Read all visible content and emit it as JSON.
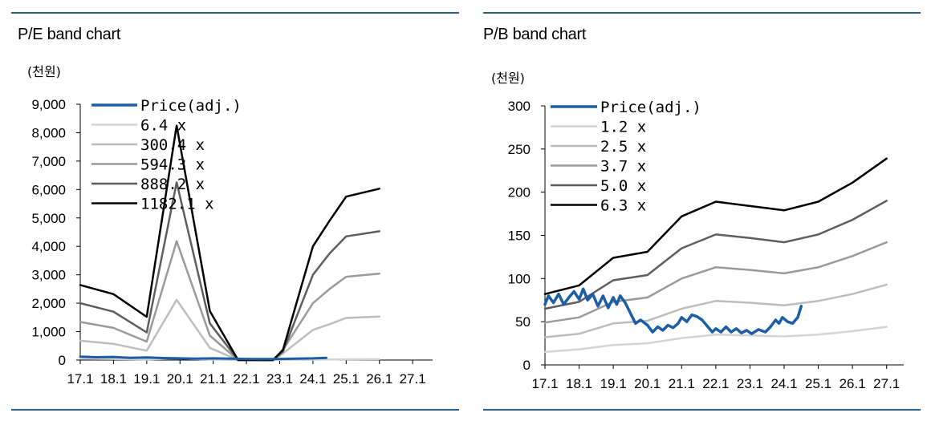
{
  "colors": {
    "rule": "#2a5d8c",
    "price": "#1b5ea6",
    "band1": "#d4d4d4",
    "band2": "#bdbdbd",
    "band3": "#9a9a9a",
    "band4": "#5e5e5e",
    "band5": "#000000"
  },
  "chart_data": [
    {
      "type": "line",
      "title": "P/E band chart",
      "unit_label": "(천원)",
      "x_tick_labels": [
        "17.1",
        "18.1",
        "19.1",
        "20.1",
        "21.1",
        "22.1",
        "23.1",
        "24.1",
        "25.1",
        "26.1",
        "27.1"
      ],
      "x_range": [
        2017.0,
        2027.6
      ],
      "ylim": [
        0,
        9000
      ],
      "y_tick_labels": [
        "0",
        "1,000",
        "2,000",
        "3,000",
        "4,000",
        "5,000",
        "6,000",
        "7,000",
        "8,000",
        "9,000"
      ],
      "legend_position": "top-left",
      "series": [
        {
          "name": "Price(adj.)",
          "color_key": "price",
          "width": 3,
          "points": [
            [
              2017.0,
              120
            ],
            [
              2017.5,
              100
            ],
            [
              2018.0,
              110
            ],
            [
              2018.5,
              80
            ],
            [
              2019.0,
              90
            ],
            [
              2019.5,
              70
            ],
            [
              2020.0,
              60
            ],
            [
              2020.5,
              50
            ],
            [
              2021.0,
              60
            ],
            [
              2021.5,
              50
            ],
            [
              2022.0,
              40
            ],
            [
              2022.5,
              35
            ],
            [
              2023.0,
              40
            ],
            [
              2023.5,
              50
            ],
            [
              2024.0,
              60
            ],
            [
              2024.4,
              80
            ]
          ]
        },
        {
          "name": "6.4 x",
          "color_key": "band1",
          "width": 2.5,
          "points": [
            [
              2017.0,
              50
            ],
            [
              2018.0,
              40
            ],
            [
              2019.0,
              20
            ],
            [
              2019.9,
              60
            ],
            [
              2020.9,
              20
            ],
            [
              2021.75,
              0
            ],
            [
              2022.8,
              0
            ],
            [
              2023.1,
              5
            ],
            [
              2024.0,
              15
            ],
            [
              2025.0,
              25
            ],
            [
              2026.0,
              30
            ]
          ]
        },
        {
          "name": "300.4 x",
          "color_key": "band2",
          "width": 2.5,
          "points": [
            [
              2017.0,
              680
            ],
            [
              2018.0,
              570
            ],
            [
              2019.0,
              330
            ],
            [
              2019.9,
              2120
            ],
            [
              2020.9,
              430
            ],
            [
              2021.75,
              0
            ],
            [
              2022.8,
              0
            ],
            [
              2023.1,
              230
            ],
            [
              2024.0,
              1060
            ],
            [
              2024.5,
              1260
            ],
            [
              2025.0,
              1480
            ],
            [
              2026.0,
              1530
            ]
          ]
        },
        {
          "name": "594.3 x",
          "color_key": "band3",
          "width": 2.5,
          "points": [
            [
              2017.0,
              1340
            ],
            [
              2018.0,
              1130
            ],
            [
              2019.0,
              650
            ],
            [
              2019.9,
              4180
            ],
            [
              2020.9,
              860
            ],
            [
              2021.75,
              0
            ],
            [
              2022.8,
              0
            ],
            [
              2023.1,
              360
            ],
            [
              2024.0,
              2000
            ],
            [
              2024.5,
              2500
            ],
            [
              2025.0,
              2930
            ],
            [
              2026.0,
              3040
            ]
          ]
        },
        {
          "name": "888.2 x",
          "color_key": "band4",
          "width": 2.5,
          "points": [
            [
              2017.0,
              2000
            ],
            [
              2018.0,
              1700
            ],
            [
              2019.0,
              970
            ],
            [
              2019.9,
              6250
            ],
            [
              2020.9,
              1290
            ],
            [
              2021.75,
              0
            ],
            [
              2022.8,
              0
            ],
            [
              2023.1,
              300
            ],
            [
              2024.0,
              3000
            ],
            [
              2024.5,
              3750
            ],
            [
              2025.0,
              4350
            ],
            [
              2026.0,
              4530
            ]
          ]
        },
        {
          "name": "1182.1 x",
          "color_key": "band5",
          "width": 2.5,
          "points": [
            [
              2017.0,
              2640
            ],
            [
              2018.0,
              2320
            ],
            [
              2019.0,
              1520
            ],
            [
              2019.9,
              8250
            ],
            [
              2020.9,
              1720
            ],
            [
              2021.75,
              0
            ],
            [
              2022.8,
              0
            ],
            [
              2023.1,
              360
            ],
            [
              2024.0,
              4000
            ],
            [
              2024.5,
              4900
            ],
            [
              2025.0,
              5750
            ],
            [
              2026.0,
              6030
            ]
          ]
        }
      ]
    },
    {
      "type": "line",
      "title": "P/B band chart",
      "unit_label": "(천원)",
      "x_tick_labels": [
        "17.1",
        "18.1",
        "19.1",
        "20.1",
        "21.1",
        "22.1",
        "23.1",
        "24.1",
        "25.1",
        "26.1",
        "27.1"
      ],
      "x_range": [
        2017.0,
        2027.5
      ],
      "ylim": [
        0,
        300
      ],
      "y_tick_labels": [
        "0",
        "50",
        "100",
        "150",
        "200",
        "250",
        "300"
      ],
      "legend_position": "top-left",
      "series": [
        {
          "name": "Price(adj.)",
          "color_key": "price",
          "width": 3.5,
          "points": [
            [
              2017.0,
              70
            ],
            [
              2017.1,
              80
            ],
            [
              2017.25,
              72
            ],
            [
              2017.4,
              82
            ],
            [
              2017.55,
              70
            ],
            [
              2017.7,
              78
            ],
            [
              2017.85,
              85
            ],
            [
              2018.0,
              76
            ],
            [
              2018.12,
              88
            ],
            [
              2018.25,
              75
            ],
            [
              2018.4,
              82
            ],
            [
              2018.55,
              68
            ],
            [
              2018.7,
              80
            ],
            [
              2018.85,
              66
            ],
            [
              2019.0,
              78
            ],
            [
              2019.1,
              70
            ],
            [
              2019.2,
              80
            ],
            [
              2019.35,
              72
            ],
            [
              2019.5,
              60
            ],
            [
              2019.65,
              48
            ],
            [
              2019.8,
              52
            ],
            [
              2020.0,
              46
            ],
            [
              2020.15,
              38
            ],
            [
              2020.3,
              44
            ],
            [
              2020.45,
              40
            ],
            [
              2020.6,
              46
            ],
            [
              2020.75,
              43
            ],
            [
              2020.9,
              48
            ],
            [
              2021.0,
              55
            ],
            [
              2021.15,
              50
            ],
            [
              2021.3,
              58
            ],
            [
              2021.45,
              56
            ],
            [
              2021.6,
              52
            ],
            [
              2021.75,
              45
            ],
            [
              2021.9,
              38
            ],
            [
              2022.0,
              42
            ],
            [
              2022.15,
              38
            ],
            [
              2022.3,
              44
            ],
            [
              2022.45,
              38
            ],
            [
              2022.6,
              42
            ],
            [
              2022.75,
              37
            ],
            [
              2022.9,
              40
            ],
            [
              2023.05,
              36
            ],
            [
              2023.25,
              41
            ],
            [
              2023.45,
              38
            ],
            [
              2023.6,
              44
            ],
            [
              2023.75,
              52
            ],
            [
              2023.85,
              48
            ],
            [
              2023.95,
              55
            ],
            [
              2024.1,
              50
            ],
            [
              2024.25,
              48
            ],
            [
              2024.4,
              55
            ],
            [
              2024.5,
              68
            ]
          ]
        },
        {
          "name": "1.2 x",
          "color_key": "band1",
          "width": 2.5,
          "points": [
            [
              2017.0,
              15
            ],
            [
              2018.0,
              18
            ],
            [
              2019.0,
              23
            ],
            [
              2020.0,
              25
            ],
            [
              2021.0,
              31
            ],
            [
              2022.0,
              35
            ],
            [
              2023.0,
              34
            ],
            [
              2024.0,
              33
            ],
            [
              2025.0,
              35
            ],
            [
              2026.0,
              39
            ],
            [
              2027.0,
              44
            ]
          ]
        },
        {
          "name": "2.5 x",
          "color_key": "band2",
          "width": 2.5,
          "points": [
            [
              2017.0,
              32
            ],
            [
              2018.0,
              36
            ],
            [
              2019.0,
              48
            ],
            [
              2020.0,
              51
            ],
            [
              2021.0,
              65
            ],
            [
              2022.0,
              74
            ],
            [
              2023.0,
              72
            ],
            [
              2024.0,
              69
            ],
            [
              2025.0,
              74
            ],
            [
              2026.0,
              82
            ],
            [
              2027.0,
              93
            ]
          ]
        },
        {
          "name": "3.7 x",
          "color_key": "band3",
          "width": 2.5,
          "points": [
            [
              2017.0,
              49
            ],
            [
              2018.0,
              55
            ],
            [
              2019.0,
              73
            ],
            [
              2020.0,
              78
            ],
            [
              2021.0,
              100
            ],
            [
              2022.0,
              113
            ],
            [
              2023.0,
              110
            ],
            [
              2024.0,
              106
            ],
            [
              2025.0,
              113
            ],
            [
              2026.0,
              126
            ],
            [
              2027.0,
              142
            ]
          ]
        },
        {
          "name": "5.0 x",
          "color_key": "band4",
          "width": 2.5,
          "points": [
            [
              2017.0,
              65
            ],
            [
              2018.0,
              73
            ],
            [
              2019.0,
              98
            ],
            [
              2020.0,
              104
            ],
            [
              2021.0,
              135
            ],
            [
              2022.0,
              151
            ],
            [
              2023.0,
              147
            ],
            [
              2024.0,
              142
            ],
            [
              2025.0,
              151
            ],
            [
              2026.0,
              168
            ],
            [
              2027.0,
              190
            ]
          ]
        },
        {
          "name": "6.3 x",
          "color_key": "band5",
          "width": 2.5,
          "points": [
            [
              2017.0,
              82
            ],
            [
              2018.0,
              92
            ],
            [
              2019.0,
              124
            ],
            [
              2020.0,
              131
            ],
            [
              2021.0,
              172
            ],
            [
              2022.0,
              189
            ],
            [
              2023.0,
              184
            ],
            [
              2024.0,
              179
            ],
            [
              2025.0,
              189
            ],
            [
              2026.0,
              211
            ],
            [
              2027.0,
              239
            ]
          ]
        }
      ]
    }
  ]
}
